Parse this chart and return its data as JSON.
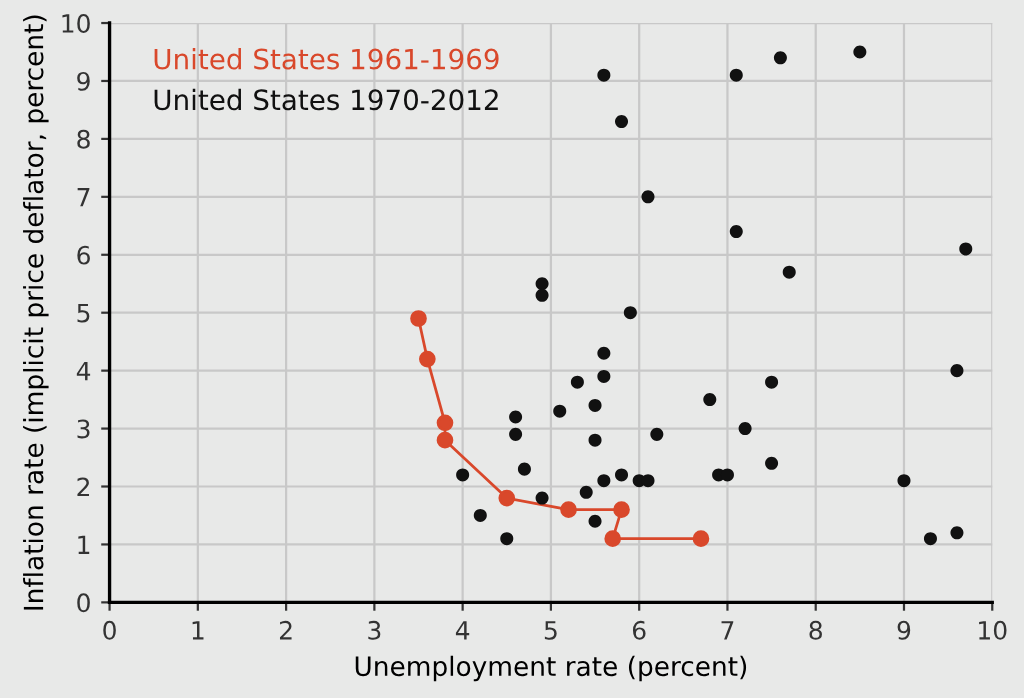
{
  "chart_data": {
    "type": "scatter",
    "xlabel": "Unemployment rate (percent)",
    "ylabel": "Inflation rate (implicit price deflator, percent)",
    "xlim": [
      0,
      10
    ],
    "ylim": [
      0,
      10
    ],
    "xticks": [
      0,
      1,
      2,
      3,
      4,
      5,
      6,
      7,
      8,
      9,
      10
    ],
    "yticks": [
      0,
      1,
      2,
      3,
      4,
      5,
      6,
      7,
      8,
      9,
      10
    ],
    "grid": true,
    "legend": "top left",
    "marker": "circle",
    "series": [
      {
        "name": "United States 1961-1969",
        "type": "line",
        "color": "#d9482b",
        "x": [
          3.5,
          3.6,
          3.8,
          3.8,
          4.5,
          5.2,
          5.8,
          5.7,
          6.7
        ],
        "values": [
          4.9,
          4.2,
          3.1,
          2.8,
          1.8,
          1.6,
          1.6,
          1.1,
          1.1
        ]
      },
      {
        "name": "United States 1970-2012",
        "color": "#111111",
        "x": [
          5.9,
          5.6,
          5.3,
          5.6,
          5.5,
          5.1,
          4.6,
          4.6,
          5.5,
          6.2,
          6.8,
          7.5,
          7.2,
          7.5,
          9.6,
          4.0,
          4.7,
          4.9,
          5.6,
          5.8,
          6.0,
          6.1,
          6.9,
          7.0,
          5.4,
          4.2,
          5.5,
          4.5,
          9.0,
          9.3,
          9.6,
          4.9,
          4.9,
          5.6,
          7.1,
          7.6,
          8.5,
          5.8,
          6.1,
          7.1,
          9.7,
          7.7
        ],
        "values": [
          5.0,
          4.3,
          3.8,
          3.9,
          3.4,
          3.3,
          3.2,
          2.9,
          2.8,
          2.9,
          3.5,
          3.8,
          3.0,
          2.4,
          4.0,
          2.2,
          2.3,
          1.8,
          2.1,
          2.2,
          2.1,
          2.1,
          2.2,
          2.2,
          1.9,
          1.5,
          1.4,
          1.1,
          2.1,
          1.1,
          1.2,
          5.5,
          5.3,
          9.1,
          9.1,
          9.4,
          9.5,
          8.3,
          7.0,
          6.4,
          6.1,
          5.7
        ]
      }
    ]
  }
}
